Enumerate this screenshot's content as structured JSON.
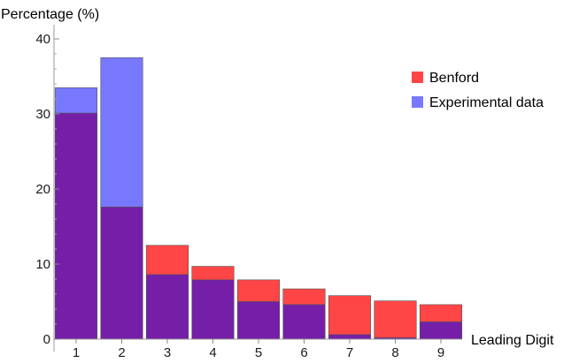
{
  "chart_data": {
    "type": "bar",
    "xlabel": "Leading Digit",
    "ylabel": "Percentage (%)",
    "categories": [
      "1",
      "2",
      "3",
      "4",
      "5",
      "6",
      "7",
      "8",
      "9"
    ],
    "ylim": [
      0,
      40
    ],
    "yticks": [
      "0",
      "10",
      "20",
      "30",
      "40"
    ],
    "grid": false,
    "legend_position": "top-right",
    "overlap": "overlaid bars; region shared by both series shown in purple",
    "series": [
      {
        "name": "Benford",
        "color": "#ff4545",
        "values": [
          30.1,
          17.6,
          12.5,
          9.7,
          7.9,
          6.7,
          5.8,
          5.1,
          4.6
        ]
      },
      {
        "name": "Experimental data",
        "color": "#7878ff",
        "values": [
          33.5,
          37.5,
          8.6,
          7.9,
          5.0,
          4.6,
          0.6,
          0.2,
          2.3
        ]
      }
    ],
    "overlap_color": "#751fa8"
  }
}
